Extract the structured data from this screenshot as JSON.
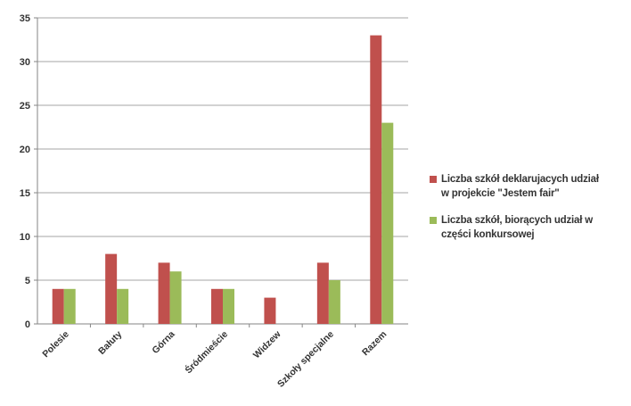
{
  "chart_data": {
    "type": "bar",
    "categories": [
      "Polesie",
      "Bałuty",
      "Górna",
      "Śródmieście",
      "Widzew",
      "Szkoły specjalne",
      "Razem"
    ],
    "series": [
      {
        "name": "Liczba szkół deklarujacych udział w projekcie \"Jestem fair\"",
        "color": "#c0504d",
        "values": [
          4,
          8,
          7,
          4,
          3,
          7,
          33
        ]
      },
      {
        "name": "Liczba szkół, biorących udział w części konkursowej",
        "color": "#9bbb59",
        "values": [
          4,
          4,
          6,
          4,
          0,
          5,
          23
        ]
      }
    ],
    "ylim": [
      0,
      35
    ],
    "yticks": [
      "0",
      "5",
      "10",
      "15",
      "20",
      "25",
      "30",
      "35"
    ],
    "ytick_values": [
      0,
      5,
      10,
      15,
      20,
      25,
      30,
      35
    ],
    "grid": true,
    "legend_position": "right",
    "legend_lines": [
      [
        "Liczba szkół deklarujacych udział",
        "w projekcie \"Jestem fair\""
      ],
      [
        "Liczba szkół, biorących udział w",
        "części konkursowej"
      ]
    ]
  }
}
